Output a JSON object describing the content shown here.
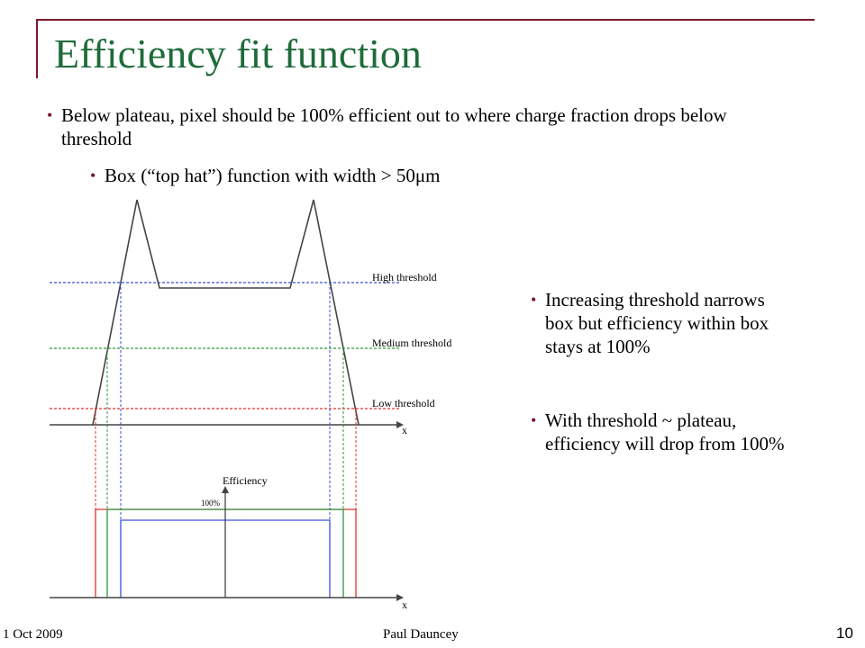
{
  "slide": {
    "title": "Efficiency fit function",
    "bullets": [
      "Below plateau, pixel should be 100% efficient out to where charge fraction drops below threshold",
      "Box (“top hat”) function with width > 50μm",
      "Increasing threshold narrows box but efficiency within box stays at 100%",
      "With threshold ~ plateau, efficiency will drop from 100%"
    ],
    "bullet_color": "#7a1a2a",
    "title_color": "#1f6b3a"
  },
  "diagram": {
    "labels": {
      "high_threshold": "High threshold",
      "medium_threshold": "Medium threshold",
      "low_threshold": "Low threshold",
      "x_axis_top": "x",
      "x_axis_bottom": "x",
      "efficiency_axis": "Efficiency",
      "hundred_percent": "100%"
    },
    "colors": {
      "high": "#3b4fd8",
      "medium": "#2a9a3a",
      "low": "#e03030",
      "curve": "#444444"
    }
  },
  "footer": {
    "date": "1 Oct 2009",
    "author": "Paul Dauncey",
    "page_number": "10"
  }
}
